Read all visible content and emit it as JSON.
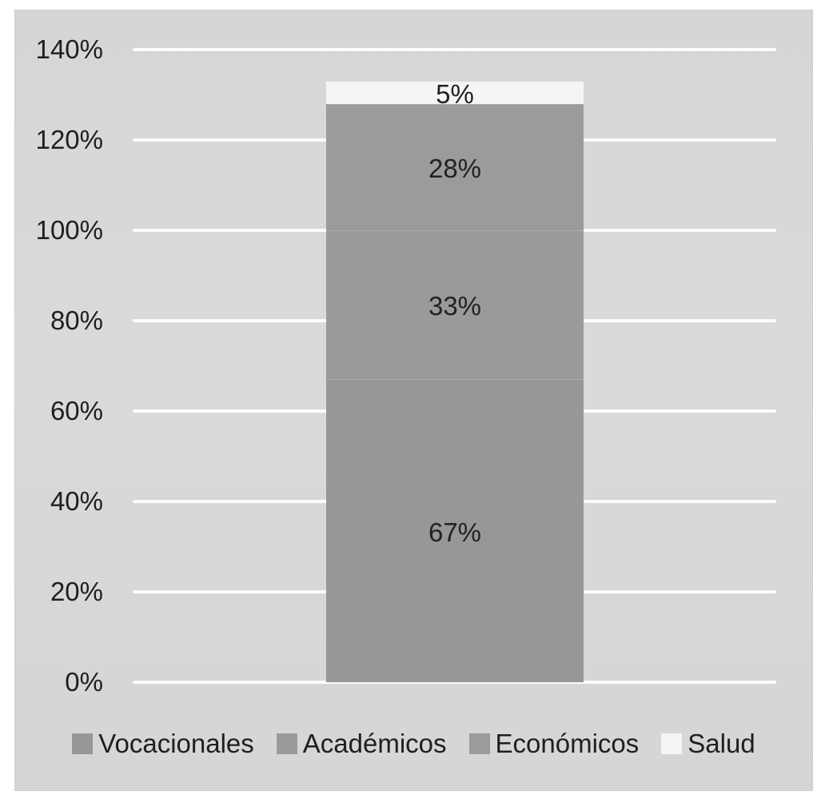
{
  "colors": {
    "panel_background": "#d8d8d8",
    "gridline": "#fcfcfc",
    "label_text": "#1f1f1f",
    "page_background": "#ffffff"
  },
  "chart_data": {
    "type": "bar",
    "stacked": true,
    "orientation": "vertical",
    "title": "",
    "xlabel": "",
    "ylabel": "",
    "categories": [
      ""
    ],
    "series": [
      {
        "name": "Vocacionales",
        "values": [
          67
        ],
        "data_label": "67%",
        "color": "#979797"
      },
      {
        "name": "Académicos",
        "values": [
          33
        ],
        "data_label": "33%",
        "color": "#9a9a9a"
      },
      {
        "name": "Económicos",
        "values": [
          28
        ],
        "data_label": "28%",
        "color": "#9b9b9b"
      },
      {
        "name": "Salud",
        "values": [
          5
        ],
        "data_label": "5%",
        "color": "#f5f5f5"
      }
    ],
    "ylim": [
      0,
      140
    ],
    "yticks": [
      0,
      20,
      40,
      60,
      80,
      100,
      120,
      140
    ],
    "ytick_labels": [
      "0%",
      "20%",
      "40%",
      "60%",
      "80%",
      "100%",
      "120%",
      "140%"
    ],
    "grid": true,
    "gridline_color": "#fcfcfc",
    "legend_position": "bottom",
    "legend": [
      "Vocacionales",
      "Académicos",
      "Económicos",
      "Salud"
    ]
  }
}
